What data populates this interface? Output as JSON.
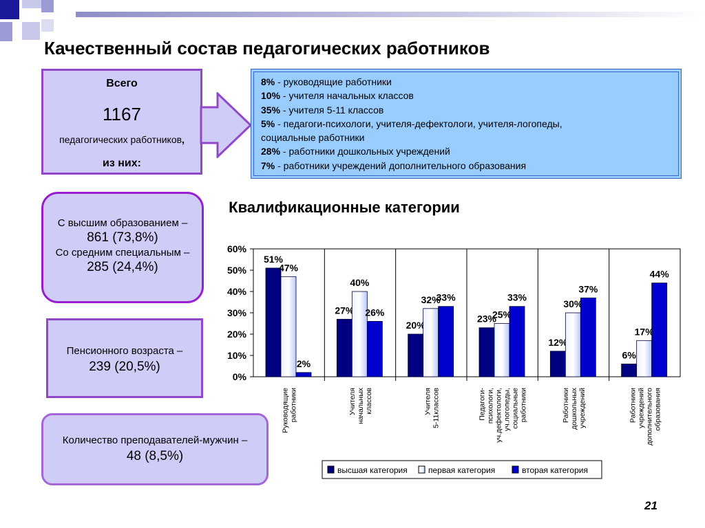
{
  "title": "Качественный состав педагогических работников",
  "total_box": {
    "line1": "Всего",
    "number": "1167",
    "line3": "педагогических работников",
    "comma": ",",
    "line4": "из них:"
  },
  "composition": [
    {
      "pct": "8%",
      "text": " - руководящие работники"
    },
    {
      "pct": "10%",
      "text": " - учителя начальных классов"
    },
    {
      "pct": "35%",
      "text": " - учителя 5-11 классов"
    },
    {
      "pct": "5%",
      "text": " - педагоги-психологи, учителя-дефектологи,  учителя-логопеды,"
    },
    {
      "pct": "",
      "text": "социальные работники"
    },
    {
      "pct": "28%",
      "text": " - работники дошкольных учреждений"
    },
    {
      "pct": "7%",
      "text": " - работники учреждений дополнительного образования"
    }
  ],
  "education_box": {
    "higher_label": "С высшим образованием –",
    "higher_value": "861 (73,8%)",
    "secondary_label": "Со средним специальным –",
    "secondary_value": "285 (24,4%)"
  },
  "pension_box": {
    "label": "Пенсионного возраста –",
    "value": "239 (20,5%)"
  },
  "men_box": {
    "label": "Количество преподавателей-мужчин –",
    "value": "48 (8,5%)"
  },
  "page_number": "21",
  "colors": {
    "accent_purple": "#9147c7",
    "box_fill": "#cfccf7",
    "info_fill": "#99ccff",
    "series_highest": "#000080",
    "series_first": "#ccd9ff",
    "series_second": "#0000cc"
  },
  "chart_data": {
    "type": "bar",
    "title": "Квалификационные категории",
    "categories": [
      [
        "Руководящие",
        "работники"
      ],
      [
        "Учителя",
        "начальных",
        "классов"
      ],
      [
        "Учителя",
        "5-11классов"
      ],
      [
        "Педагоги-",
        "психологи,",
        "уч.дефектологи,",
        "уч.логопеды,",
        "социальные",
        "работники"
      ],
      [
        "Работники",
        "дошкольных",
        "учреждений"
      ],
      [
        "Работники",
        "учреждений",
        "дополнительного",
        "образования"
      ]
    ],
    "series": [
      {
        "name": "высшая категория",
        "values": [
          51,
          27,
          20,
          23,
          12,
          6
        ],
        "labels": [
          "51%",
          "27%",
          "20%",
          "23%",
          "12%",
          "6%"
        ]
      },
      {
        "name": "первая категория",
        "values": [
          47,
          40,
          32,
          25,
          30,
          17
        ],
        "labels": [
          "47%",
          "40%",
          "32%",
          "25%",
          "30%",
          "17%"
        ]
      },
      {
        "name": "вторая категория",
        "values": [
          2,
          26,
          33,
          33,
          37,
          44
        ],
        "labels": [
          "2%",
          "26%",
          "33%",
          "33%",
          "37%",
          "44%"
        ]
      }
    ],
    "yticks": [
      "0%",
      "10%",
      "20%",
      "30%",
      "40%",
      "50%",
      "60%"
    ],
    "ylim": [
      0,
      60
    ],
    "legend": "bottom",
    "grid": false
  }
}
